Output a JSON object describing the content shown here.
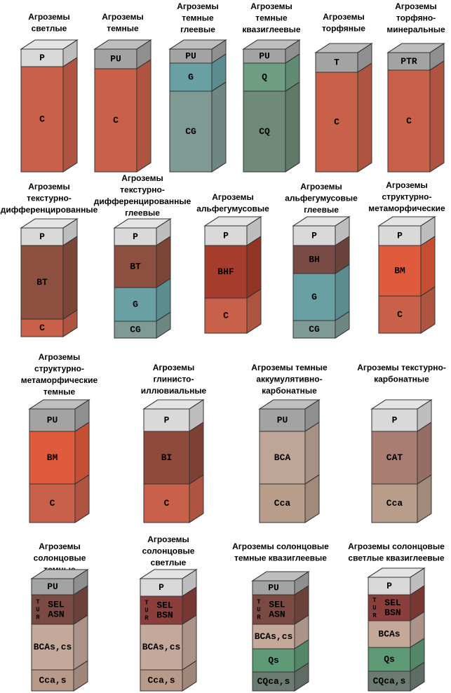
{
  "profiles": [
    {
      "title": [
        "Агроземы",
        "светлые"
      ],
      "horizons": [
        {
          "lines": [
            "P"
          ]
        },
        {
          "lines": [
            "C"
          ]
        }
      ]
    },
    {
      "title": [
        "Агроземы",
        "темные"
      ],
      "horizons": [
        {
          "lines": [
            "PU"
          ]
        },
        {
          "lines": [
            "C"
          ]
        }
      ]
    },
    {
      "title": [
        "Агроземы",
        "темные",
        "глеевые"
      ],
      "horizons": [
        {
          "lines": [
            "PU"
          ]
        },
        {
          "lines": [
            "G"
          ]
        },
        {
          "lines": [
            "CG"
          ]
        }
      ]
    },
    {
      "title": [
        "Агроземы",
        "темные",
        "квазиглеевые"
      ],
      "horizons": [
        {
          "lines": [
            "PU"
          ]
        },
        {
          "lines": [
            "Q"
          ]
        },
        {
          "lines": [
            "CQ"
          ]
        }
      ]
    },
    {
      "title": [
        "Агроземы",
        "торфяные"
      ],
      "horizons": [
        {
          "lines": [
            "T"
          ]
        },
        {
          "lines": [
            "C"
          ]
        }
      ]
    },
    {
      "title": [
        "Агроземы",
        "торфяно-",
        "минеральные"
      ],
      "horizons": [
        {
          "lines": [
            "PTR"
          ]
        },
        {
          "lines": [
            "C"
          ]
        }
      ]
    },
    {
      "title": [
        "Агроземы",
        "текстурно-",
        "дифференцированные"
      ],
      "horizons": [
        {
          "lines": [
            "P"
          ]
        },
        {
          "lines": [
            "BT"
          ]
        },
        {
          "lines": [
            "C"
          ]
        }
      ]
    },
    {
      "title": [
        "Агроземы",
        "текстурно-",
        "дифференцированные",
        "глеевые"
      ],
      "horizons": [
        {
          "lines": [
            "P"
          ]
        },
        {
          "lines": [
            "BT"
          ]
        },
        {
          "lines": [
            "G"
          ]
        },
        {
          "lines": [
            "CG"
          ]
        }
      ]
    },
    {
      "title": [
        "Агроземы",
        "альфегумусовые"
      ],
      "horizons": [
        {
          "lines": [
            "P"
          ]
        },
        {
          "lines": [
            "BHF"
          ]
        },
        {
          "lines": [
            "C"
          ]
        }
      ]
    },
    {
      "title": [
        "Агроземы",
        "альфегумусовые",
        "глеевые"
      ],
      "horizons": [
        {
          "lines": [
            "P"
          ]
        },
        {
          "lines": [
            "BH"
          ]
        },
        {
          "lines": [
            "G"
          ]
        },
        {
          "lines": [
            "CG"
          ]
        }
      ]
    },
    {
      "title": [
        "Агроземы",
        "структурно-",
        "метаморфические"
      ],
      "horizons": [
        {
          "lines": [
            "P"
          ]
        },
        {
          "lines": [
            "BM"
          ]
        },
        {
          "lines": [
            "C"
          ]
        }
      ]
    },
    {
      "title": [
        "Агроземы",
        "структурно-",
        "метаморфические",
        "темные"
      ],
      "horizons": [
        {
          "lines": [
            "PU"
          ]
        },
        {
          "lines": [
            "BM"
          ]
        },
        {
          "lines": [
            "C"
          ]
        }
      ]
    },
    {
      "title": [
        "Агроземы",
        "глинисто-",
        "иллювиальные"
      ],
      "horizons": [
        {
          "lines": [
            "P"
          ]
        },
        {
          "lines": [
            "BI"
          ]
        },
        {
          "lines": [
            "C"
          ]
        }
      ]
    },
    {
      "title": [
        "Агроземы темные",
        "аккумулятивно-",
        "карбонатные"
      ],
      "horizons": [
        {
          "lines": [
            "PU"
          ]
        },
        {
          "lines": [
            "BCA"
          ]
        },
        {
          "lines": [
            "Cca"
          ]
        }
      ]
    },
    {
      "title": [
        "Агроземы текстурно-",
        "карбонатные"
      ],
      "horizons": [
        {
          "lines": [
            "P"
          ]
        },
        {
          "lines": [
            "CAT"
          ]
        },
        {
          "lines": [
            "Cca"
          ]
        }
      ]
    },
    {
      "title": [
        "Агроземы",
        "солонцовые",
        "темные"
      ],
      "horizons": [
        {
          "lines": [
            "PU"
          ]
        },
        {
          "lines": [
            "SEL",
            "ASN"
          ],
          "side_label": [
            "T",
            "U",
            "R"
          ]
        },
        {
          "lines": [
            "BCAs,cs"
          ]
        },
        {
          "lines": [
            "Cca,s"
          ]
        }
      ]
    },
    {
      "title": [
        "Агроземы",
        "солонцовые",
        "светлые"
      ],
      "horizons": [
        {
          "lines": [
            "P"
          ]
        },
        {
          "lines": [
            "SEL",
            "BSN"
          ],
          "side_label": [
            "T",
            "U",
            "R"
          ]
        },
        {
          "lines": [
            "BCAs,cs"
          ]
        },
        {
          "lines": [
            "Cca,s"
          ]
        }
      ]
    },
    {
      "title": [
        "Агроземы солонцовые",
        "темные квазиглеевые"
      ],
      "horizons": [
        {
          "lines": [
            "PU"
          ]
        },
        {
          "lines": [
            "SEL",
            "ASN"
          ],
          "side_label": [
            "T",
            "U",
            "R"
          ]
        },
        {
          "lines": [
            "BCAs,cs"
          ]
        },
        {
          "lines": [
            "Qs"
          ]
        },
        {
          "lines": [
            "CQca,s"
          ]
        }
      ]
    },
    {
      "title": [
        "Агроземы солонцовые",
        "светлые квазиглеевые"
      ],
      "horizons": [
        {
          "lines": [
            "P"
          ]
        },
        {
          "lines": [
            "SEL",
            "BSN"
          ],
          "side_label": [
            "T",
            "U",
            "R"
          ]
        },
        {
          "lines": [
            "BCAs"
          ]
        },
        {
          "lines": [
            "Qs"
          ]
        },
        {
          "lines": [
            "CQca,s"
          ]
        }
      ]
    }
  ]
}
